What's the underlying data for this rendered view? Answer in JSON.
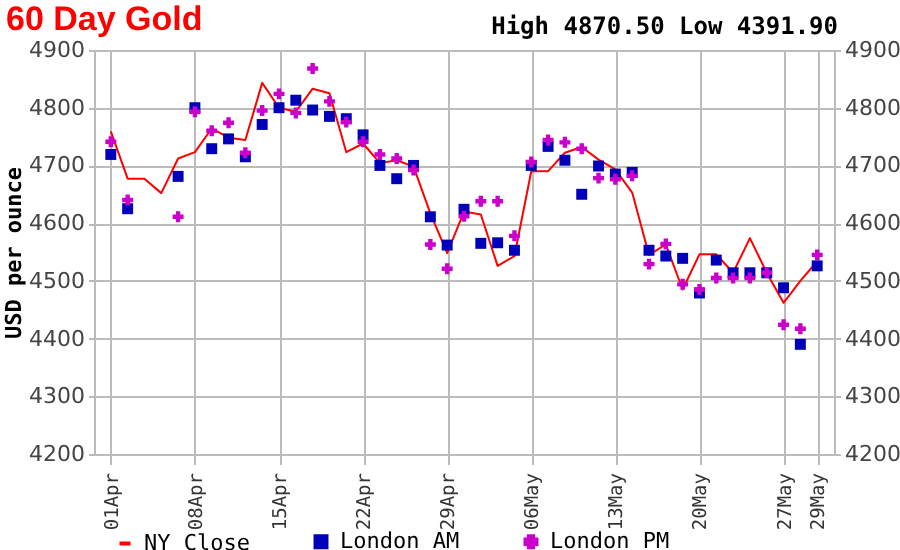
{
  "chart_data": {
    "type": "line",
    "title": "60 Day Gold",
    "annotations": [
      "High 4870.50 Low 4391.90"
    ],
    "ylabel": "USD per ounce",
    "categories": [
      "01Apr",
      null,
      null,
      null,
      null,
      "08Apr",
      null,
      null,
      null,
      null,
      "15Apr",
      null,
      null,
      null,
      null,
      "22Apr",
      null,
      null,
      null,
      null,
      "29Apr",
      null,
      null,
      null,
      null,
      "06May",
      null,
      null,
      null,
      null,
      "13May",
      null,
      null,
      null,
      null,
      "20May",
      null,
      null,
      null,
      null,
      "27May",
      null,
      "29May"
    ],
    "series": [
      {
        "name": "NY Close",
        "color": "#ff0000",
        "marker": "none",
        "values": [
          4759,
          4677,
          4677,
          4652,
          4712,
          4723,
          4764,
          4748,
          4744,
          4843,
          4800,
          4793,
          4833,
          4825,
          4723,
          4738,
          4704,
          4709,
          4698,
          4617,
          4548,
          4620,
          4615,
          4526,
          4543,
          4690,
          4690,
          4722,
          4732,
          4710,
          4693,
          4653,
          4545,
          4563,
          4485,
          4546,
          4546,
          4514,
          4574,
          4514,
          4462,
          4500,
          4534
        ]
      },
      {
        "name": "London AM",
        "type": "scatter",
        "color": "#0000bb",
        "marker": "square",
        "values": [
          4719,
          4625,
          null,
          null,
          4681,
          4800,
          4729,
          4746,
          4715,
          4771,
          4800,
          4813,
          4796,
          4785,
          4781,
          4753,
          4700,
          4677,
          4700,
          4611,
          4562,
          4624,
          4565,
          4566,
          4553,
          4700,
          4733,
          4709,
          4650,
          4699,
          4685,
          4688,
          4553,
          4543,
          4539,
          4479,
          4536,
          4514,
          4514,
          4514,
          4488,
          4390,
          4526
        ]
      },
      {
        "name": "London PM",
        "type": "scatter",
        "color": "#cc00cc",
        "marker": "cross",
        "values": [
          4741,
          4640,
          null,
          null,
          4611,
          4793,
          4760,
          4774,
          4722,
          4795,
          4824,
          4791,
          4868,
          4811,
          4775,
          4741,
          4719,
          4712,
          4692,
          4563,
          4521,
          4612,
          4638,
          4638,
          4578,
          4706,
          4744,
          4740,
          4729,
          4678,
          4676,
          4682,
          4529,
          4564,
          4494,
          4485,
          4505,
          4505,
          4505,
          4514,
          4424,
          4417,
          4545
        ]
      }
    ],
    "ylim": [
      4200,
      4900
    ],
    "yticks": [
      4200,
      4300,
      4400,
      4500,
      4600,
      4700,
      4800,
      4900
    ],
    "y2lim": [
      4200,
      4900
    ],
    "y2ticks": [
      4200,
      4300,
      4400,
      4500,
      4600,
      4700,
      4800,
      4900
    ],
    "grid": true,
    "legend": "bottom"
  }
}
